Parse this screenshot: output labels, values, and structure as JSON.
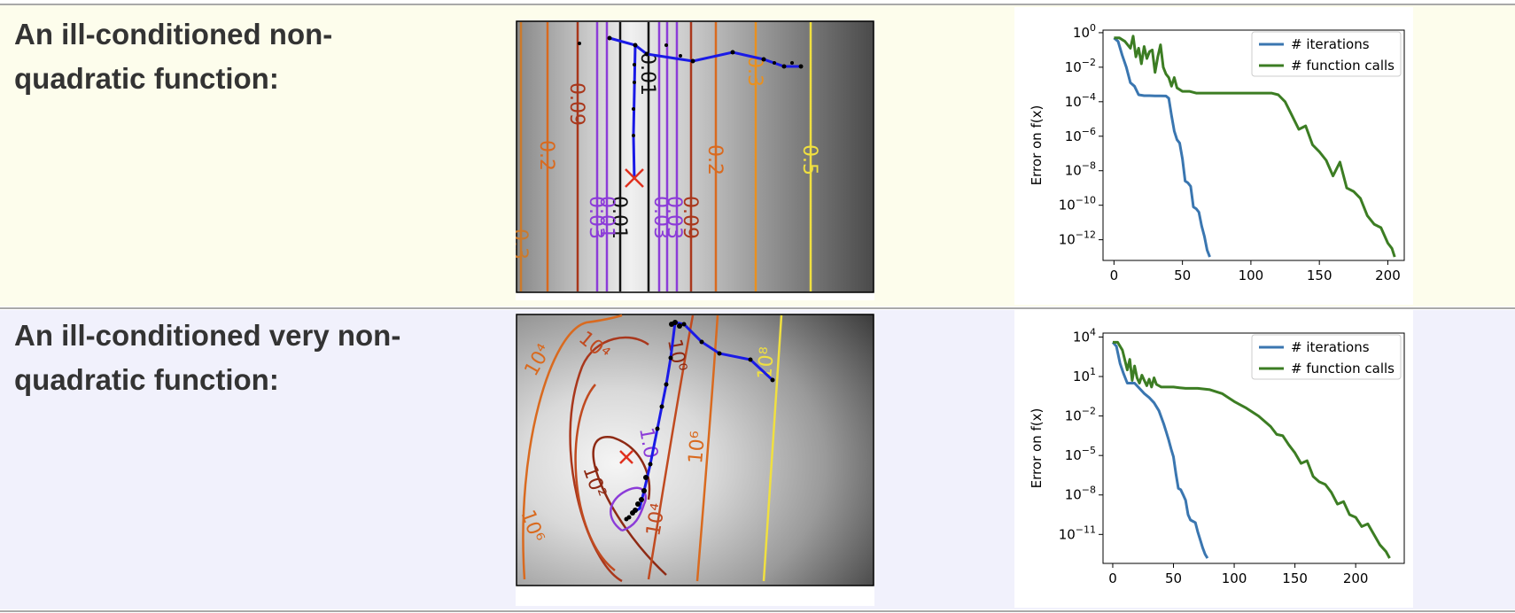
{
  "rows": [
    {
      "label_line1": "An ill-conditioned non-",
      "label_line2": "quadratic function:",
      "contour_labels": [
        "0.3",
        "0.2",
        "0.09",
        "0.01",
        "0.2",
        "0.5",
        "0.3",
        "0.01",
        "0.03",
        "0.03",
        "0.03",
        "0.09",
        "0.01"
      ],
      "chart_data": {
        "type": "line",
        "xlabel": "",
        "ylabel": "Error on f(x)",
        "yscale": "log",
        "xlim": [
          -8,
          212
        ],
        "xticks": [
          "0",
          "50",
          "100",
          "150",
          "200"
        ],
        "ylim_exp": [
          -13.2,
          0.15
        ],
        "yticks": [
          {
            "exp": 0,
            "base": "10",
            "sup": "0"
          },
          {
            "exp": -2,
            "base": "10",
            "sup": "−2"
          },
          {
            "exp": -4,
            "base": "10",
            "sup": "−4"
          },
          {
            "exp": -6,
            "base": "10",
            "sup": "−6"
          },
          {
            "exp": -8,
            "base": "10",
            "sup": "−8"
          },
          {
            "exp": -10,
            "base": "10",
            "sup": "−10"
          },
          {
            "exp": -12,
            "base": "10",
            "sup": "−12"
          }
        ],
        "legend_position": "top-right",
        "series": [
          {
            "name": "# iterations",
            "color": "#3a76b0",
            "x": [
              0,
              3,
              6,
              9,
              12,
              15,
              18,
              22,
              26,
              30,
              34,
              38,
              40,
              42,
              44,
              46,
              48,
              50,
              52,
              54,
              56,
              58,
              60,
              62,
              64,
              66,
              68,
              70
            ],
            "log10_y": [
              -0.3,
              -0.5,
              -1.3,
              -2.0,
              -2.9,
              -3.1,
              -3.6,
              -3.65,
              -3.65,
              -3.66,
              -3.66,
              -3.67,
              -3.8,
              -4.8,
              -5.7,
              -6.2,
              -6.4,
              -7.3,
              -8.6,
              -8.7,
              -8.9,
              -10.1,
              -10.2,
              -10.4,
              -11.2,
              -11.8,
              -12.6,
              -13.0
            ]
          },
          {
            "name": "# function calls",
            "color": "#3c7d23",
            "x": [
              0,
              4,
              8,
              12,
              14,
              16,
              18,
              20,
              22,
              24,
              26,
              28,
              30,
              32,
              34,
              36,
              38,
              40,
              42,
              44,
              46,
              50,
              55,
              60,
              70,
              80,
              90,
              100,
              110,
              115,
              120,
              125,
              130,
              135,
              140,
              145,
              150,
              155,
              160,
              165,
              170,
              175,
              180,
              185,
              190,
              195,
              200,
              203,
              205
            ],
            "log10_y": [
              -0.3,
              -0.3,
              -0.5,
              -0.9,
              -0.2,
              -1.4,
              -0.9,
              -1.8,
              -0.8,
              -1.5,
              -1.1,
              -1.0,
              -2.3,
              -1.4,
              -0.7,
              -2.0,
              -2.4,
              -2.6,
              -3.1,
              -2.6,
              -3.2,
              -3.4,
              -3.4,
              -3.5,
              -3.5,
              -3.5,
              -3.5,
              -3.5,
              -3.5,
              -3.5,
              -3.6,
              -4.0,
              -4.8,
              -5.6,
              -5.4,
              -6.5,
              -6.9,
              -7.4,
              -8.3,
              -7.5,
              -9.0,
              -9.2,
              -9.6,
              -10.6,
              -11.1,
              -11.3,
              -12.2,
              -12.5,
              -13.0
            ]
          }
        ]
      }
    },
    {
      "label_line1": "An ill-conditioned very non-",
      "label_line2": "quadratic function:",
      "contour_labels": [
        "10⁴",
        "10⁴",
        "10⁰",
        "10⁸",
        "10²",
        "1.0",
        "10⁶",
        "10⁶",
        "10⁴"
      ],
      "chart_data": {
        "type": "line",
        "xlabel": "",
        "ylabel": "Error on f(x)",
        "yscale": "log",
        "xlim": [
          -8,
          240
        ],
        "xticks": [
          "0",
          "50",
          "100",
          "150",
          "200"
        ],
        "ylim_exp": [
          -13.2,
          4.3
        ],
        "yticks": [
          {
            "exp": 4,
            "base": "10",
            "sup": "4"
          },
          {
            "exp": 1,
            "base": "10",
            "sup": "1"
          },
          {
            "exp": -2,
            "base": "10",
            "sup": "−2"
          },
          {
            "exp": -5,
            "base": "10",
            "sup": "−5"
          },
          {
            "exp": -8,
            "base": "10",
            "sup": "−8"
          },
          {
            "exp": -11,
            "base": "10",
            "sup": "−11"
          }
        ],
        "legend_position": "top-right",
        "series": [
          {
            "name": "# iterations",
            "color": "#3a76b0",
            "x": [
              0,
              3,
              6,
              9,
              12,
              15,
              18,
              22,
              26,
              30,
              34,
              38,
              42,
              44,
              46,
              48,
              50,
              52,
              54,
              56,
              58,
              60,
              62,
              64,
              66,
              68,
              70,
              72,
              74,
              76,
              78
            ],
            "log10_y": [
              3.6,
              3.3,
              2.0,
              1.2,
              0.5,
              0.5,
              0.5,
              0.1,
              -0.3,
              -0.6,
              -1.0,
              -1.6,
              -2.6,
              -3.2,
              -3.8,
              -4.5,
              -5.1,
              -6.4,
              -7.5,
              -7.6,
              -8.0,
              -8.4,
              -9.5,
              -9.9,
              -10.0,
              -10.1,
              -10.8,
              -11.4,
              -12.0,
              -12.5,
              -12.8
            ]
          },
          {
            "name": "# function calls",
            "color": "#3c7d23",
            "x": [
              0,
              4,
              8,
              12,
              14,
              16,
              18,
              20,
              22,
              24,
              26,
              28,
              30,
              32,
              34,
              36,
              38,
              40,
              45,
              50,
              55,
              60,
              70,
              80,
              90,
              95,
              100,
              110,
              120,
              125,
              130,
              135,
              140,
              145,
              150,
              155,
              160,
              165,
              170,
              175,
              180,
              185,
              190,
              195,
              200,
              205,
              210,
              215,
              220,
              225,
              228
            ],
            "log10_y": [
              3.6,
              3.6,
              3.0,
              1.5,
              2.3,
              0.7,
              1.8,
              0.9,
              0.5,
              1.1,
              0.7,
              0.3,
              0.8,
              0.2,
              0.9,
              0.4,
              0.3,
              0.2,
              0.2,
              0.2,
              0.15,
              0.1,
              0.1,
              0.0,
              -0.3,
              -0.6,
              -0.9,
              -1.4,
              -2.0,
              -2.4,
              -2.8,
              -3.4,
              -3.5,
              -4.2,
              -4.8,
              -5.6,
              -5.4,
              -6.6,
              -7.0,
              -7.2,
              -7.8,
              -8.7,
              -8.5,
              -9.5,
              -9.7,
              -10.4,
              -10.2,
              -11.0,
              -11.8,
              -12.3,
              -12.8
            ]
          }
        ]
      }
    }
  ]
}
